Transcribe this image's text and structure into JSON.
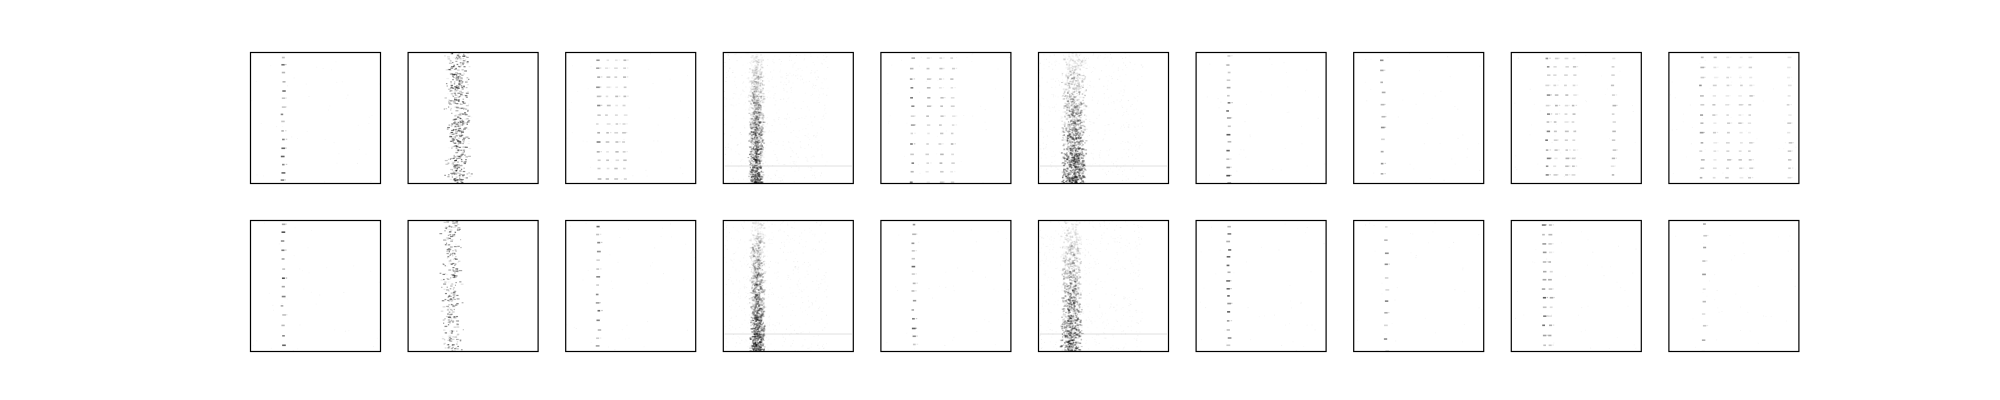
{
  "figure": {
    "background": "#ffffff",
    "frame_color": "#000000",
    "ink": "#000000"
  },
  "chart_data": {
    "type": "heatmap",
    "layout": {
      "rows": 2,
      "cols": 10
    },
    "axes_visible": false,
    "grid": false,
    "colormap": "white-to-black",
    "panels": [
      {
        "pattern": "columns",
        "columns": [
          0.25
        ],
        "rows_spacing": 0.0625,
        "intensity": 0.55,
        "seed": 1
      },
      {
        "pattern": "cluster",
        "center": 0.38,
        "spread": 0.08,
        "density": 0.6,
        "intensity": 0.55,
        "seed": 2
      },
      {
        "pattern": "columns",
        "columns": [
          0.25,
          0.32,
          0.39,
          0.45
        ],
        "rows_spacing": 0.07,
        "intensity": 0.4,
        "seed": 3
      },
      {
        "pattern": "noise",
        "center": 0.25,
        "spread": 0.05,
        "density": 0.9,
        "intensity": 0.45,
        "seed": 4
      },
      {
        "pattern": "columns",
        "columns": [
          0.24,
          0.36,
          0.46,
          0.55
        ],
        "rows_spacing": 0.07,
        "intensity": 0.45,
        "seed": 5
      },
      {
        "pattern": "noise",
        "center": 0.27,
        "spread": 0.08,
        "density": 1.0,
        "intensity": 0.5,
        "seed": 6
      },
      {
        "pattern": "columns",
        "columns": [
          0.25
        ],
        "rows_spacing": 0.06,
        "intensity": 0.55,
        "seed": 7
      },
      {
        "pattern": "columns",
        "columns": [
          0.22
        ],
        "rows_spacing": 0.085,
        "intensity": 0.4,
        "seed": 8
      },
      {
        "pattern": "columns",
        "columns": [
          0.28,
          0.34,
          0.42,
          0.48,
          0.78
        ],
        "rows_spacing": 0.07,
        "intensity": 0.45,
        "seed": 9
      },
      {
        "pattern": "columns",
        "columns": [
          0.25,
          0.35,
          0.45,
          0.55,
          0.62,
          0.92
        ],
        "rows_spacing": 0.07,
        "intensity": 0.35,
        "seed": 10
      },
      {
        "pattern": "columns",
        "columns": [
          0.25
        ],
        "rows_spacing": 0.07,
        "intensity": 0.55,
        "seed": 11
      },
      {
        "pattern": "cluster",
        "center": 0.33,
        "spread": 0.07,
        "density": 0.35,
        "intensity": 0.5,
        "seed": 12
      },
      {
        "pattern": "columns",
        "columns": [
          0.25
        ],
        "rows_spacing": 0.065,
        "intensity": 0.5,
        "seed": 13
      },
      {
        "pattern": "noise",
        "center": 0.26,
        "spread": 0.05,
        "density": 0.9,
        "intensity": 0.45,
        "seed": 14
      },
      {
        "pattern": "columns",
        "columns": [
          0.25
        ],
        "rows_spacing": 0.065,
        "intensity": 0.5,
        "seed": 15
      },
      {
        "pattern": "noise",
        "center": 0.25,
        "spread": 0.07,
        "density": 0.8,
        "intensity": 0.45,
        "seed": 16
      },
      {
        "pattern": "columns",
        "columns": [
          0.25
        ],
        "rows_spacing": 0.06,
        "intensity": 0.55,
        "seed": 17
      },
      {
        "pattern": "columns",
        "columns": [
          0.25
        ],
        "rows_spacing": 0.095,
        "intensity": 0.4,
        "seed": 18
      },
      {
        "pattern": "columns",
        "columns": [
          0.25,
          0.3
        ],
        "rows_spacing": 0.07,
        "intensity": 0.5,
        "seed": 19
      },
      {
        "pattern": "columns",
        "columns": [
          0.27
        ],
        "rows_spacing": 0.1,
        "intensity": 0.35,
        "seed": 20
      }
    ]
  }
}
